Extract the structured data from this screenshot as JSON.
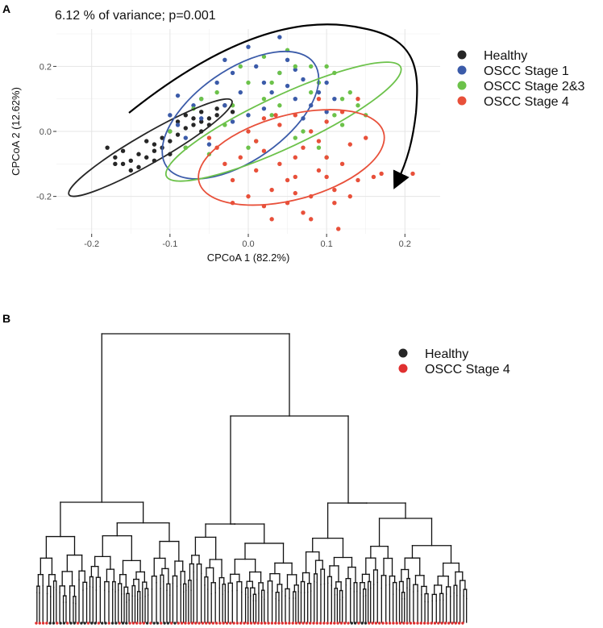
{
  "panel_a": {
    "letter": "A",
    "chart_data": {
      "type": "scatter",
      "title": "6.12 % of variance; p=0.001",
      "xlabel": "CPCoA 1 (82.2%)",
      "ylabel": "CPCoA 2 (12.62%)",
      "xlim": [
        -0.245,
        0.245
      ],
      "ylim": [
        -0.315,
        0.315
      ],
      "xticks": [
        -0.2,
        -0.1,
        0.0,
        0.1,
        0.2
      ],
      "xtick_labels": [
        "-0.2",
        "-0.1",
        "0.0",
        "0.1",
        "0.2"
      ],
      "yticks": [
        -0.2,
        0.0,
        0.2
      ],
      "ytick_labels": [
        "-0.2",
        "0.0",
        "0.2"
      ],
      "legend_position": "right",
      "series": [
        {
          "name": "Healthy",
          "color": "#262626",
          "ellipse": {
            "cx": -0.125,
            "cy": -0.05,
            "rx": 0.12,
            "ry": 0.045,
            "angle_deg": 30
          },
          "points": [
            [
              -0.18,
              -0.05
            ],
            [
              -0.17,
              -0.08
            ],
            [
              -0.16,
              -0.1
            ],
            [
              -0.15,
              -0.12
            ],
            [
              -0.14,
              -0.07
            ],
            [
              -0.13,
              -0.03
            ],
            [
              -0.12,
              -0.06
            ],
            [
              -0.11,
              -0.02
            ],
            [
              -0.1,
              0.0
            ],
            [
              -0.09,
              0.03
            ],
            [
              -0.08,
              0.05
            ],
            [
              -0.07,
              0.02
            ],
            [
              -0.06,
              0.06
            ],
            [
              -0.05,
              0.04
            ],
            [
              -0.04,
              0.07
            ],
            [
              -0.03,
              0.08
            ],
            [
              -0.02,
              0.06
            ],
            [
              -0.15,
              -0.09
            ],
            [
              -0.14,
              -0.11
            ],
            [
              -0.12,
              -0.09
            ],
            [
              -0.11,
              -0.05
            ],
            [
              -0.1,
              -0.03
            ],
            [
              -0.09,
              -0.01
            ],
            [
              -0.08,
              0.01
            ],
            [
              -0.07,
              0.04
            ],
            [
              -0.06,
              0.0
            ],
            [
              -0.05,
              0.02
            ],
            [
              -0.13,
              -0.08
            ],
            [
              -0.16,
              -0.06
            ],
            [
              -0.17,
              -0.1
            ],
            [
              -0.12,
              -0.04
            ],
            [
              -0.1,
              -0.07
            ],
            [
              -0.08,
              -0.05
            ],
            [
              -0.06,
              0.03
            ],
            [
              -0.04,
              0.05
            ]
          ]
        },
        {
          "name": "OSCC Stage 1",
          "color": "#3b5ba9",
          "ellipse": {
            "cx": -0.01,
            "cy": 0.05,
            "rx": 0.115,
            "ry": 0.14,
            "angle_deg": 35
          },
          "points": [
            [
              -0.1,
              0.05
            ],
            [
              -0.09,
              0.02
            ],
            [
              -0.08,
              -0.02
            ],
            [
              -0.07,
              0.08
            ],
            [
              -0.06,
              0.1
            ],
            [
              -0.05,
              -0.04
            ],
            [
              -0.04,
              0.15
            ],
            [
              -0.03,
              0.08
            ],
            [
              -0.02,
              0.18
            ],
            [
              -0.01,
              0.12
            ],
            [
              0.0,
              0.05
            ],
            [
              0.01,
              0.2
            ],
            [
              0.02,
              0.15
            ],
            [
              0.03,
              0.12
            ],
            [
              0.04,
              0.18
            ],
            [
              0.05,
              0.22
            ],
            [
              0.06,
              0.1
            ],
            [
              0.07,
              0.16
            ],
            [
              0.08,
              0.08
            ],
            [
              0.09,
              0.12
            ],
            [
              0.1,
              0.15
            ],
            [
              0.11,
              0.1
            ],
            [
              -0.03,
              0.22
            ],
            [
              0.0,
              0.26
            ],
            [
              0.04,
              0.29
            ],
            [
              -0.06,
              0.04
            ],
            [
              0.02,
              0.07
            ],
            [
              0.05,
              0.14
            ],
            [
              -0.09,
              0.11
            ],
            [
              0.07,
              0.04
            ],
            [
              0.1,
              0.06
            ],
            [
              -0.02,
              0.03
            ],
            [
              0.06,
              0.19
            ]
          ]
        },
        {
          "name": "OSCC Stage 2&3",
          "color": "#6cc24a",
          "ellipse": {
            "cx": 0.045,
            "cy": 0.03,
            "rx": 0.165,
            "ry": 0.08,
            "angle_deg": 25
          },
          "points": [
            [
              -0.1,
              0.0
            ],
            [
              -0.08,
              -0.05
            ],
            [
              -0.06,
              0.1
            ],
            [
              -0.04,
              0.12
            ],
            [
              -0.02,
              0.08
            ],
            [
              0.0,
              0.15
            ],
            [
              0.02,
              0.1
            ],
            [
              0.04,
              0.18
            ],
            [
              0.06,
              0.2
            ],
            [
              0.08,
              0.12
            ],
            [
              0.1,
              0.2
            ],
            [
              0.12,
              0.1
            ],
            [
              0.14,
              0.08
            ],
            [
              0.05,
              0.25
            ],
            [
              -0.03,
              0.02
            ],
            [
              0.01,
              -0.03
            ],
            [
              0.03,
              0.05
            ],
            [
              0.07,
              0.0
            ],
            [
              0.09,
              -0.05
            ],
            [
              0.11,
              0.05
            ],
            [
              -0.05,
              -0.07
            ],
            [
              0.13,
              0.12
            ],
            [
              0.04,
              0.08
            ],
            [
              0.08,
              0.2
            ],
            [
              -0.01,
              0.2
            ],
            [
              0.02,
              0.23
            ],
            [
              0.06,
              -0.02
            ],
            [
              0.12,
              0.02
            ],
            [
              -0.07,
              0.07
            ],
            [
              0.1,
              -0.08
            ],
            [
              0.15,
              0.05
            ],
            [
              0.0,
              -0.05
            ],
            [
              0.09,
              0.15
            ],
            [
              0.03,
              0.15
            ],
            [
              0.11,
              0.18
            ]
          ]
        },
        {
          "name": "OSCC Stage 4",
          "color": "#e8503a",
          "ellipse": {
            "cx": 0.055,
            "cy": -0.08,
            "rx": 0.122,
            "ry": 0.13,
            "angle_deg": 15
          },
          "points": [
            [
              -0.03,
              -0.1
            ],
            [
              -0.02,
              -0.15
            ],
            [
              -0.01,
              -0.08
            ],
            [
              0.0,
              -0.2
            ],
            [
              0.01,
              -0.12
            ],
            [
              0.02,
              -0.06
            ],
            [
              0.03,
              -0.18
            ],
            [
              0.04,
              -0.1
            ],
            [
              0.05,
              -0.22
            ],
            [
              0.06,
              -0.14
            ],
            [
              0.07,
              -0.05
            ],
            [
              0.08,
              -0.2
            ],
            [
              0.09,
              -0.12
            ],
            [
              0.1,
              -0.08
            ],
            [
              0.11,
              -0.18
            ],
            [
              0.12,
              -0.1
            ],
            [
              0.13,
              -0.04
            ],
            [
              0.14,
              -0.15
            ],
            [
              0.15,
              -0.02
            ],
            [
              0.16,
              -0.14
            ],
            [
              0.17,
              -0.13
            ],
            [
              0.21,
              -0.13
            ],
            [
              0.0,
              0.0
            ],
            [
              0.02,
              0.04
            ],
            [
              0.04,
              0.02
            ],
            [
              0.06,
              0.05
            ],
            [
              0.08,
              0.0
            ],
            [
              0.1,
              0.03
            ],
            [
              0.12,
              0.06
            ],
            [
              -0.04,
              -0.05
            ],
            [
              0.05,
              -0.15
            ],
            [
              0.07,
              -0.25
            ],
            [
              0.09,
              -0.03
            ],
            [
              0.11,
              -0.22
            ],
            [
              0.03,
              -0.27
            ],
            [
              0.02,
              -0.23
            ],
            [
              -0.02,
              -0.22
            ],
            [
              0.01,
              -0.03
            ],
            [
              0.06,
              -0.08
            ],
            [
              0.13,
              -0.2
            ],
            [
              0.08,
              -0.27
            ],
            [
              0.115,
              -0.3
            ],
            [
              0.14,
              0.1
            ],
            [
              0.09,
              0.1
            ],
            [
              0.035,
              0.05
            ],
            [
              -0.05,
              -0.02
            ],
            [
              0.1,
              -0.14
            ],
            [
              0.06,
              -0.19
            ]
          ]
        }
      ],
      "annotation": "curved-arrow"
    }
  },
  "panel_b": {
    "letter": "B",
    "chart_data": {
      "type": "dendrogram",
      "legend_position": "top-right",
      "series": [
        {
          "name": "Healthy",
          "color": "#262626"
        },
        {
          "name": "OSCC Stage 4",
          "color": "#e03030"
        }
      ],
      "leaf_colors": "mixed"
    }
  }
}
